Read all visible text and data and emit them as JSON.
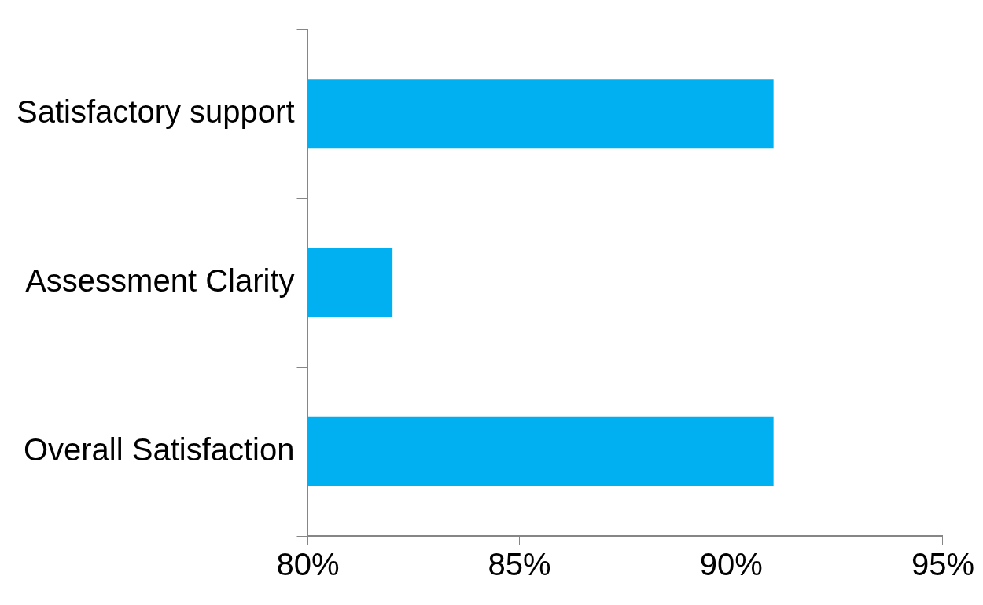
{
  "chart_data": {
    "type": "bar",
    "orientation": "horizontal",
    "categories": [
      "Satisfactory support",
      "Assessment Clarity",
      "Overall Satisfaction"
    ],
    "values": [
      91,
      82,
      91
    ],
    "color": "#00b0f0",
    "xlim": [
      80,
      95
    ],
    "xticks": [
      {
        "value": 80,
        "label": "80%"
      },
      {
        "value": 85,
        "label": "85%"
      },
      {
        "value": 90,
        "label": "90%"
      },
      {
        "value": 95,
        "label": "95%"
      }
    ],
    "grid": false,
    "legend": false
  }
}
